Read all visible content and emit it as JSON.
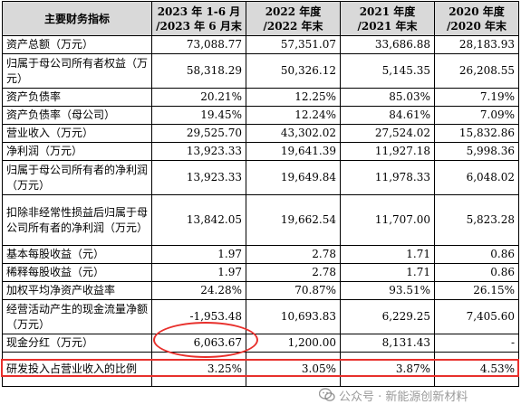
{
  "table": {
    "headers": [
      "主要财务指标",
      "2023 年 1-6 月 /2023 年 6 月末",
      "2022 年度 /2022 年末",
      "2021 年度 /2021 年末",
      "2020 年度 /2020 年末"
    ],
    "rows": [
      {
        "label": "资产总额（万元）",
        "values": [
          "73,088.77",
          "57,351.07",
          "33,686.88",
          "28,183.93"
        ]
      },
      {
        "label": "归属于母公司所有者权益（万元）",
        "values": [
          "58,318.29",
          "50,326.12",
          "5,145.35",
          "26,208.55"
        ]
      },
      {
        "label": "资产负债率",
        "values": [
          "20.21%",
          "12.25%",
          "85.03%",
          "7.19%"
        ]
      },
      {
        "label": "资产负债率（母公司）",
        "values": [
          "19.45%",
          "12.24%",
          "84.61%",
          "7.09%"
        ]
      },
      {
        "label": "营业收入（万元）",
        "values": [
          "29,525.70",
          "43,302.02",
          "27,524.02",
          "15,832.86"
        ]
      },
      {
        "label": "净利润（万元）",
        "values": [
          "13,923.33",
          "19,641.39",
          "11,927.18",
          "5,998.36"
        ]
      },
      {
        "label": "归属于母公司所有者的净利润（万元）",
        "values": [
          "13,923.33",
          "19,649.84",
          "11,978.33",
          "6,048.02"
        ]
      },
      {
        "label": "扣除非经常性损益后归属于母公司所有者的净利润（万元）",
        "values": [
          "13,842.05",
          "19,662.54",
          "11,707.00",
          "5,823.28"
        ]
      },
      {
        "label": "基本每股收益（元）",
        "values": [
          "1.97",
          "2.78",
          "1.71",
          "0.86"
        ]
      },
      {
        "label": "稀释每股收益（元）",
        "values": [
          "1.97",
          "2.78",
          "1.71",
          "0.86"
        ]
      },
      {
        "label": "加权平均净资产收益率",
        "values": [
          "24.28%",
          "70.87%",
          "93.51%",
          "26.15%"
        ]
      },
      {
        "label": "经营活动产生的现金流量净额（万元）",
        "values": [
          "-1,953.48",
          "10,693.83",
          "6,229.25",
          "7,405.60"
        ]
      },
      {
        "label": "现金分红（万元）",
        "values": [
          "6,063.67",
          "1,200.00",
          "8,131.43",
          "-"
        ]
      },
      {
        "label": "研发投入占营业收入的比例",
        "values": [
          "3.25%",
          "3.05%",
          "3.87%",
          "4.53%"
        ]
      }
    ]
  },
  "highlights": {
    "color": "#e8302c"
  },
  "watermark": {
    "text": "公众号 · 新能源创新材料",
    "icon": "wechat-icon"
  }
}
